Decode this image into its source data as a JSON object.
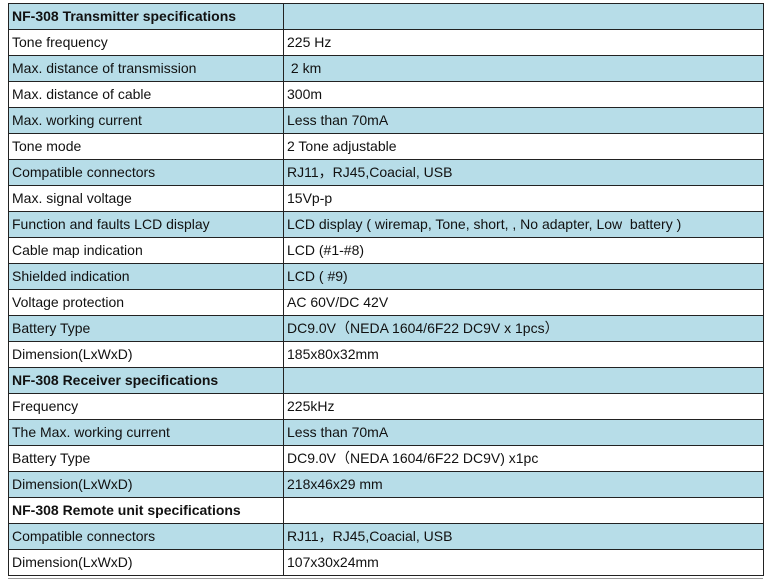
{
  "rows": [
    {
      "kind": "header",
      "shade": true,
      "label": "NF-308 Transmitter specifications",
      "value": ""
    },
    {
      "kind": "row",
      "shade": false,
      "label": "Tone frequency",
      "value": "225 Hz"
    },
    {
      "kind": "row",
      "shade": true,
      "label": "Max. distance of transmission",
      "value": " 2 km"
    },
    {
      "kind": "row",
      "shade": false,
      "label": "Max. distance of cable",
      "value": "300m"
    },
    {
      "kind": "row",
      "shade": true,
      "label": "Max. working current",
      "value": "Less than 70mA"
    },
    {
      "kind": "row",
      "shade": false,
      "label": "Tone mode",
      "value": "2 Tone adjustable"
    },
    {
      "kind": "row",
      "shade": true,
      "label": "Compatible connectors",
      "value": "RJ11，RJ45,Coacial, USB"
    },
    {
      "kind": "row",
      "shade": false,
      "label": "Max. signal voltage",
      "value": "15Vp-p"
    },
    {
      "kind": "row",
      "shade": true,
      "label": "Function and faults LCD display",
      "value": "LCD display ( wiremap, Tone, short, , No adapter, Low  battery )"
    },
    {
      "kind": "row",
      "shade": false,
      "label": "Cable map indication",
      "value": "LCD (#1-#8)"
    },
    {
      "kind": "row",
      "shade": true,
      "label": "Shielded indication",
      "value": "LCD ( #9)"
    },
    {
      "kind": "row",
      "shade": false,
      "label": "Voltage protection",
      "value": "AC 60V/DC 42V"
    },
    {
      "kind": "row",
      "shade": true,
      "label": "Battery Type",
      "value": "DC9.0V（NEDA 1604/6F22 DC9V x 1pcs）"
    },
    {
      "kind": "row",
      "shade": false,
      "label": "Dimension(LxWxD)",
      "value": "185x80x32mm"
    },
    {
      "kind": "header",
      "shade": true,
      "label": "NF-308 Receiver specifications",
      "value": ""
    },
    {
      "kind": "row",
      "shade": false,
      "label": "Frequency",
      "value": "225kHz"
    },
    {
      "kind": "row",
      "shade": true,
      "label": "The Max. working current",
      "value": "Less than 70mA"
    },
    {
      "kind": "row",
      "shade": false,
      "label": "Battery Type",
      "value": "DC9.0V（NEDA 1604/6F22 DC9V) x1pc"
    },
    {
      "kind": "row",
      "shade": true,
      "label": "Dimension(LxWxD)",
      "value": "218x46x29 mm"
    },
    {
      "kind": "header",
      "shade": false,
      "label": "NF-308 Remote unit specifications",
      "value": ""
    },
    {
      "kind": "row",
      "shade": true,
      "label": "Compatible connectors",
      "value": "RJ11，RJ45,Coacial, USB"
    },
    {
      "kind": "row",
      "shade": false,
      "label": "Dimension(LxWxD)",
      "value": "107x30x24mm"
    }
  ]
}
